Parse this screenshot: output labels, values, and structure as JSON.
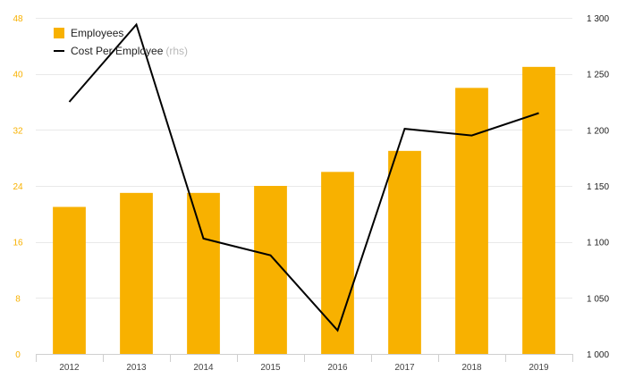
{
  "chart_data": {
    "type": "bar",
    "categories": [
      "2012",
      "2013",
      "2014",
      "2015",
      "2016",
      "2017",
      "2018",
      "2019"
    ],
    "series": [
      {
        "name": "Employees",
        "type": "bar",
        "axis": "left",
        "color": "#f8b100",
        "values": [
          21,
          23,
          23,
          24,
          26,
          29,
          38,
          41
        ]
      },
      {
        "name": "Cost Per Employee",
        "type": "line",
        "axis": "right",
        "color": "#000000",
        "values": [
          1225,
          1294,
          1103,
          1088,
          1021,
          1201,
          1195,
          1215
        ]
      }
    ],
    "y_left": {
      "range": [
        0,
        48
      ],
      "ticks": [
        0,
        8,
        16,
        24,
        32,
        40,
        48
      ],
      "tick_labels": [
        "0",
        "8",
        "16",
        "24",
        "32",
        "40",
        "48"
      ],
      "color": "#f8b100"
    },
    "y_right": {
      "range": [
        1000,
        1300
      ],
      "ticks": [
        1000,
        1050,
        1100,
        1150,
        1200,
        1250,
        1300
      ],
      "tick_labels": [
        "1 000",
        "1 050",
        "1 100",
        "1 150",
        "1 200",
        "1 250",
        "1 300"
      ]
    },
    "grid": true,
    "legend": {
      "placement": "top-left",
      "employees_label": "Employees",
      "cost_label": "Cost Per Employee",
      "cost_suffix": "(rhs)"
    }
  }
}
